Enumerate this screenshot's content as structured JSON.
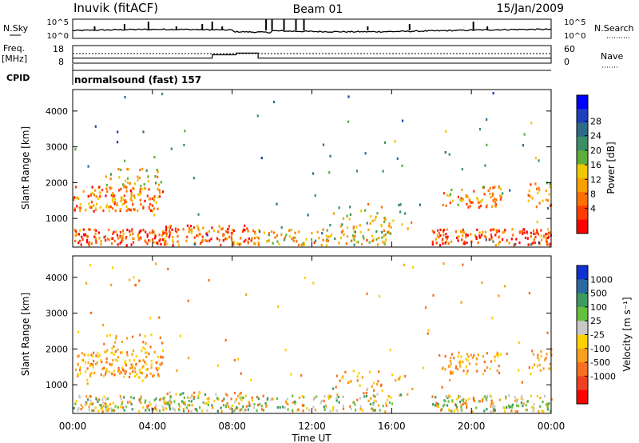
{
  "header": {
    "station": "Inuvik (fitACF)",
    "beam": "Beam 01",
    "date": "15/Jan/2009"
  },
  "chart_data": [
    {
      "type": "line",
      "panel": "noise",
      "left_label": "N.Sky",
      "right_label": "N.Search",
      "left_ticks": [
        "10^5",
        "10^0"
      ],
      "right_ticks": [
        "10^5",
        "10^0"
      ]
    },
    {
      "type": "line",
      "panel": "frequency",
      "left_label": "Freq.",
      "left_unit": "[MHz]",
      "right_label": "Nave",
      "left_ticks": [
        18,
        8
      ],
      "right_ticks": [
        60,
        0
      ],
      "frequency_steps": [
        {
          "start_hour": 0,
          "end_hour": 7.0,
          "freq_mhz": 11
        },
        {
          "start_hour": 7.0,
          "end_hour": 8.2,
          "freq_mhz": 13
        },
        {
          "start_hour": 8.2,
          "end_hour": 9.3,
          "freq_mhz": 14
        },
        {
          "start_hour": 9.3,
          "end_hour": 24,
          "freq_mhz": 11
        }
      ]
    },
    {
      "type": "table",
      "panel": "cpid",
      "label": "CPID",
      "mode": "normalsound (fast) 157"
    },
    {
      "type": "heatmap",
      "panel": "power",
      "ylabel": "Slant Range [km]",
      "y_ticks": [
        1000,
        2000,
        3000,
        4000
      ],
      "ylim": [
        200,
        4600
      ],
      "xlim": [
        0,
        24
      ],
      "colorbar_label": "Power [dB]",
      "colorbar_ticks": [
        4,
        8,
        12,
        16,
        20,
        24,
        28
      ],
      "colorbar_colors": [
        "#0000ff",
        "#1f3fbf",
        "#2e6b8a",
        "#3a8f66",
        "#5fae3c",
        "#f0c800",
        "#f8a000",
        "#ff7000",
        "#ff3c00",
        "#ff0000"
      ]
    },
    {
      "type": "heatmap",
      "panel": "velocity",
      "ylabel": "Slant Range [km]",
      "y_ticks": [
        1000,
        2000,
        3000,
        4000
      ],
      "ylim": [
        200,
        4600
      ],
      "xlim": [
        0,
        24
      ],
      "xlabel": "Time UT",
      "x_ticks": [
        "00:00",
        "04:00",
        "08:00",
        "12:00",
        "16:00",
        "20:00",
        "00:00"
      ],
      "colorbar_label": "Velocity [m s⁻¹]",
      "colorbar_ticks": [
        1000,
        500,
        100,
        25,
        -25,
        -100,
        -500,
        -1000
      ],
      "colorbar_colors": [
        "#1030d0",
        "#2a6aa0",
        "#3d9a60",
        "#66c040",
        "#c8c8c8",
        "#ffd000",
        "#f8a020",
        "#f57020",
        "#f04020",
        "#ff0000"
      ]
    }
  ]
}
